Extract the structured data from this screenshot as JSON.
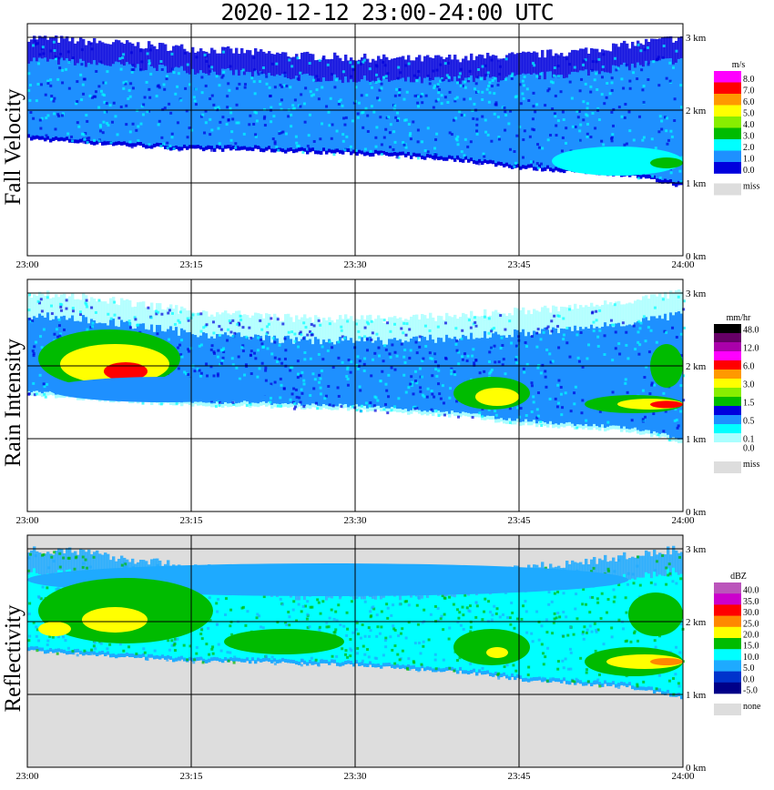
{
  "title": "2020-12-12   23:00-24:00 UTC",
  "chart_data": [
    {
      "type": "heatmap",
      "name": "Fall Velocity",
      "ylabel": "Fall Velocity",
      "x_tick_labels": [
        "23:00",
        "23:15",
        "23:30",
        "23:45",
        "24:00"
      ],
      "y_tick_labels": [
        "0 km",
        "1 km",
        "2 km",
        "3 km"
      ],
      "xlim": [
        "23:00",
        "24:00"
      ],
      "ylim_km": [
        0,
        3.1
      ],
      "grid": true,
      "colorbar": {
        "unit": "m/s",
        "levels": [
          {
            "label": "8.0",
            "color": "#ff00ff"
          },
          {
            "label": "7.0",
            "color": "#ff0000"
          },
          {
            "label": "6.0",
            "color": "#ff9900"
          },
          {
            "label": "5.0",
            "color": "#ffff00"
          },
          {
            "label": "4.0",
            "color": "#88ee00"
          },
          {
            "label": "3.0",
            "color": "#00bb00"
          },
          {
            "label": "2.0",
            "color": "#00ffff"
          },
          {
            "label": "1.0",
            "color": "#1e90ff"
          },
          {
            "label": "0.0",
            "color": "#0000dd"
          }
        ],
        "missing": {
          "label": "miss",
          "color": "#dddddd"
        }
      },
      "echo": {
        "top_km": [
          3.0,
          2.95,
          2.9,
          2.85,
          2.8,
          2.75,
          2.72,
          2.7,
          2.72,
          2.75,
          2.8,
          2.9,
          3.0
        ],
        "base_km": [
          1.6,
          1.55,
          1.5,
          1.45,
          1.45,
          1.42,
          1.4,
          1.35,
          1.3,
          1.2,
          1.15,
          1.1,
          0.95
        ],
        "dominant": "1.0",
        "edge": "0.0",
        "features": [
          {
            "t": [
              48,
              60
            ],
            "z": [
              1.1,
              1.5
            ],
            "level": "2.0"
          },
          {
            "t": [
              57,
              60
            ],
            "z": [
              1.2,
              1.35
            ],
            "level": "3.0"
          }
        ],
        "background": "none"
      }
    },
    {
      "type": "heatmap",
      "name": "Rain Intensity",
      "ylabel": "Rain Intensity",
      "x_tick_labels": [
        "23:00",
        "23:15",
        "23:30",
        "23:45",
        "24:00"
      ],
      "y_tick_labels": [
        "0 km",
        "1 km",
        "2 km",
        "3 km"
      ],
      "xlim": [
        "23:00",
        "24:00"
      ],
      "ylim_km": [
        0,
        3.1
      ],
      "grid": true,
      "colorbar": {
        "unit": "mm/hr",
        "levels": [
          {
            "label": "48.0",
            "color": "#000000"
          },
          {
            "label": "",
            "color": "#660066"
          },
          {
            "label": "12.0",
            "color": "#aa00aa"
          },
          {
            "label": "",
            "color": "#ff00ff"
          },
          {
            "label": "6.0",
            "color": "#ff0000"
          },
          {
            "label": "",
            "color": "#ff9900"
          },
          {
            "label": "3.0",
            "color": "#ffff00"
          },
          {
            "label": "",
            "color": "#88ee00"
          },
          {
            "label": "1.5",
            "color": "#00bb00"
          },
          {
            "label": "",
            "color": "#0000dd"
          },
          {
            "label": "0.5",
            "color": "#1e90ff"
          },
          {
            "label": "",
            "color": "#00ffff"
          },
          {
            "label": "0.1",
            "color": "#aaffff"
          },
          {
            "label": "0.0",
            "color": "#ffffff"
          }
        ],
        "missing": {
          "label": "miss",
          "color": "#dddddd"
        }
      },
      "echo": {
        "top_km": [
          3.0,
          2.95,
          2.85,
          2.75,
          2.7,
          2.65,
          2.65,
          2.65,
          2.7,
          2.75,
          2.8,
          2.9,
          3.0
        ],
        "base_km": [
          1.6,
          1.55,
          1.5,
          1.45,
          1.45,
          1.42,
          1.4,
          1.35,
          1.3,
          1.2,
          1.15,
          1.1,
          0.95
        ],
        "dominant": "0.5",
        "edge": "0.1",
        "features": [
          {
            "t": [
              1,
              14
            ],
            "z": [
              1.7,
              2.5
            ],
            "level": "1.5"
          },
          {
            "t": [
              3,
              13
            ],
            "z": [
              1.75,
              2.3
            ],
            "level": "3.0"
          },
          {
            "t": [
              7,
              11
            ],
            "z": [
              1.8,
              2.05
            ],
            "level": "6.0"
          },
          {
            "t": [
              2,
              23
            ],
            "z": [
              1.5,
              1.85
            ],
            "level": ""
          },
          {
            "t": [
              39,
              46
            ],
            "z": [
              1.4,
              1.85
            ],
            "level": "1.5"
          },
          {
            "t": [
              41,
              45
            ],
            "z": [
              1.45,
              1.7
            ],
            "level": "3.0"
          },
          {
            "t": [
              51,
              60
            ],
            "z": [
              1.35,
              1.6
            ],
            "level": "1.5"
          },
          {
            "t": [
              54,
              60
            ],
            "z": [
              1.4,
              1.55
            ],
            "level": "3.0"
          },
          {
            "t": [
              57,
              60
            ],
            "z": [
              1.42,
              1.52
            ],
            "level": "6.0"
          },
          {
            "t": [
              57,
              60
            ],
            "z": [
              1.7,
              2.3
            ],
            "level": "1.5"
          }
        ],
        "background": "none"
      }
    },
    {
      "type": "heatmap",
      "name": "Reflectivity",
      "ylabel": "Reflectivity",
      "x_tick_labels": [
        "23:00",
        "23:15",
        "23:30",
        "23:45",
        "24:00"
      ],
      "y_tick_labels": [
        "0 km",
        "1 km",
        "2 km",
        "3 km"
      ],
      "xlim": [
        "23:00",
        "24:00"
      ],
      "ylim_km": [
        0,
        3.1
      ],
      "grid": true,
      "colorbar": {
        "unit": "dBZ",
        "levels": [
          {
            "label": "40.0",
            "color": "#bb55bb"
          },
          {
            "label": "35.0",
            "color": "#cc00cc"
          },
          {
            "label": "30.0",
            "color": "#ff0000"
          },
          {
            "label": "25.0",
            "color": "#ff8800"
          },
          {
            "label": "20.0",
            "color": "#ffff00"
          },
          {
            "label": "15.0",
            "color": "#00bb00"
          },
          {
            "label": "10.0",
            "color": "#00ffff"
          },
          {
            "label": "5.0",
            "color": "#1eaaff"
          },
          {
            "label": "0.0",
            "color": "#0033cc"
          },
          {
            "label": "-5.0",
            "color": "#000088"
          }
        ],
        "missing": {
          "label": "none",
          "color": "#dddddd"
        }
      },
      "echo": {
        "top_km": [
          3.0,
          2.95,
          2.85,
          2.75,
          2.7,
          2.65,
          2.65,
          2.65,
          2.7,
          2.75,
          2.8,
          2.9,
          3.0
        ],
        "base_km": [
          1.6,
          1.55,
          1.5,
          1.45,
          1.45,
          1.42,
          1.4,
          1.35,
          1.3,
          1.2,
          1.15,
          1.1,
          0.95
        ],
        "dominant": "10.0",
        "edge": "5.0",
        "features": [
          {
            "t": [
              0,
              55
            ],
            "z": [
              2.35,
              2.8
            ],
            "level": "5.0"
          },
          {
            "t": [
              1,
              17
            ],
            "z": [
              1.7,
              2.6
            ],
            "level": "15.0"
          },
          {
            "t": [
              1,
              4
            ],
            "z": [
              1.8,
              2.0
            ],
            "level": "20.0"
          },
          {
            "t": [
              5,
              11
            ],
            "z": [
              1.85,
              2.2
            ],
            "level": "20.0"
          },
          {
            "t": [
              18,
              29
            ],
            "z": [
              1.55,
              1.9
            ],
            "level": "15.0"
          },
          {
            "t": [
              39,
              46
            ],
            "z": [
              1.4,
              1.9
            ],
            "level": "15.0"
          },
          {
            "t": [
              42,
              44
            ],
            "z": [
              1.5,
              1.65
            ],
            "level": "20.0"
          },
          {
            "t": [
              51,
              60
            ],
            "z": [
              1.25,
              1.65
            ],
            "level": "15.0"
          },
          {
            "t": [
              53,
              60
            ],
            "z": [
              1.35,
              1.55
            ],
            "level": "20.0"
          },
          {
            "t": [
              57,
              60
            ],
            "z": [
              1.4,
              1.5
            ],
            "level": "25.0"
          },
          {
            "t": [
              55,
              60
            ],
            "z": [
              1.8,
              2.4
            ],
            "level": "15.0"
          }
        ],
        "background": "none"
      }
    }
  ]
}
